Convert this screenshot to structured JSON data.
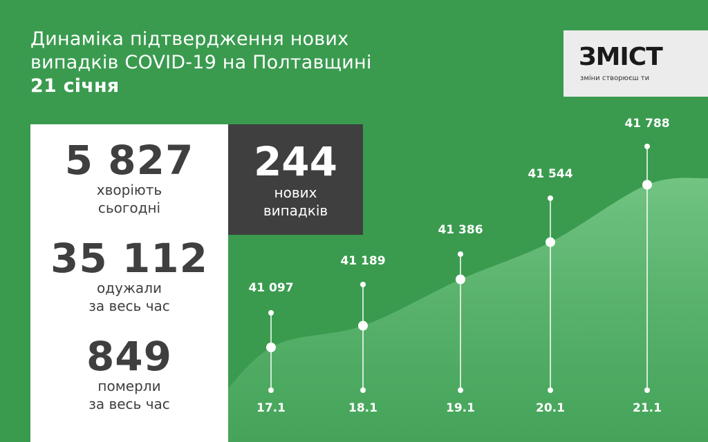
{
  "title": {
    "line1": "Динаміка підтвердження нових",
    "line2": "випадків COVID-19 на Полтавщині",
    "date": "21 січня"
  },
  "logo": {
    "word": "ЗМІСТ",
    "tagline": "зміни створюєш ти"
  },
  "stats": {
    "sick": {
      "value": "5 827",
      "label1": "хворіють",
      "label2": "сьогодні"
    },
    "recovered": {
      "value": "35 112",
      "label1": "одужали",
      "label2": "за весь час"
    },
    "died": {
      "value": "849",
      "label1": "померли",
      "label2": "за весь час"
    }
  },
  "new_cases": {
    "value": "244",
    "label1": "нових",
    "label2": "випадків"
  },
  "colors": {
    "background": "#3a9b4f",
    "area": "#6cc07e",
    "dark": "#3f3f3f",
    "text_light": "#ffffff"
  },
  "chart_data": {
    "type": "area",
    "categories": [
      "17.1",
      "18.1",
      "19.1",
      "20.1",
      "21.1"
    ],
    "values": [
      41097,
      41189,
      41386,
      41544,
      41788
    ],
    "value_labels": [
      "41 097",
      "41 189",
      "41 386",
      "41 544",
      "41 788"
    ]
  }
}
